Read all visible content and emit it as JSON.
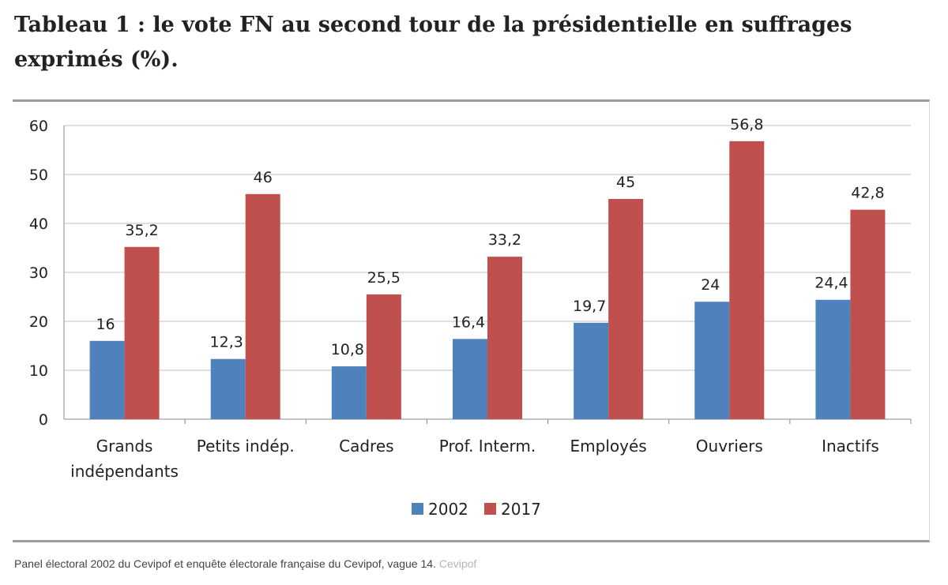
{
  "title": "Tableau 1 : le vote FN au second tour de la présidentielle en suffrages exprimés (%).",
  "caption": {
    "text": "Panel électoral 2002 du Cevipof et enquête électorale française du Cevipof, vague 14.",
    "source": "Cevipof"
  },
  "chart_data": {
    "type": "bar",
    "title": "",
    "xlabel": "",
    "ylabel": "",
    "ylim": [
      0,
      60
    ],
    "yticks": [
      0,
      10,
      20,
      30,
      40,
      50,
      60
    ],
    "grid": true,
    "legend_position": "bottom",
    "categories": [
      [
        "Grands",
        "indépendants"
      ],
      [
        "Petits indép."
      ],
      [
        "Cadres"
      ],
      [
        "Prof. Interm."
      ],
      [
        "Employés"
      ],
      [
        "Ouvriers"
      ],
      [
        "Inactifs"
      ]
    ],
    "series": [
      {
        "name": "2002",
        "color": "#4f81bd",
        "values": [
          16,
          12.3,
          10.8,
          16.4,
          19.7,
          24,
          24.4
        ],
        "labels": [
          "16",
          "12,3",
          "10,8",
          "16,4",
          "19,7",
          "24",
          "24,4"
        ]
      },
      {
        "name": "2017",
        "color": "#c0504d",
        "values": [
          35.2,
          46,
          25.5,
          33.2,
          45,
          56.8,
          42.8
        ],
        "labels": [
          "35,2",
          "46",
          "25,5",
          "33,2",
          "45",
          "56,8",
          "42,8"
        ]
      }
    ]
  }
}
